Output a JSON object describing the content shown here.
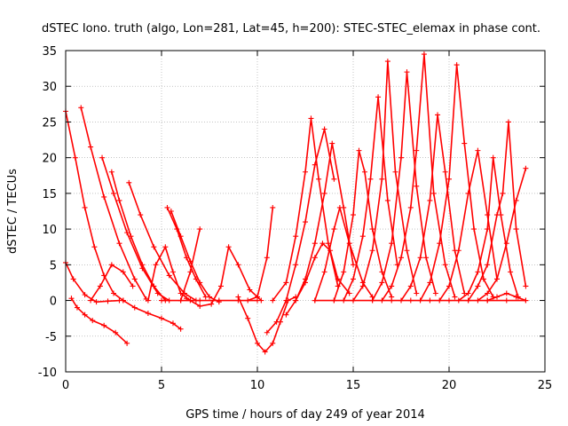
{
  "chart_data": {
    "type": "scatter",
    "title": "dSTEC Iono. truth (algo, Lon=281, Lat=45, h=200): STEC-STEC_elemax in phase cont.",
    "xlabel": "GPS time / hours of day 249 of year 2014",
    "ylabel": "dSTEC  / TECUs",
    "xlim": [
      0,
      25
    ],
    "ylim": [
      -10,
      35
    ],
    "xticks": [
      0,
      5,
      10,
      15,
      20,
      25
    ],
    "yticks": [
      -10,
      -5,
      0,
      5,
      10,
      15,
      20,
      25,
      30,
      35
    ],
    "grid": true,
    "marker": "+",
    "color": "#ff0000",
    "series": [
      {
        "x": [
          0.0,
          0.4,
          1.0,
          1.6,
          2.2,
          2.8
        ],
        "y": [
          5.3,
          3.0,
          0.8,
          -0.2,
          -0.1,
          0.0
        ]
      },
      {
        "x": [
          0.0,
          0.5,
          1.0,
          1.5,
          2.0,
          2.5,
          3.0
        ],
        "y": [
          26.5,
          20.0,
          13.0,
          7.5,
          3.5,
          1.0,
          0.0
        ]
      },
      {
        "x": [
          0.3,
          0.6,
          1.0,
          1.4,
          2.0,
          2.6,
          3.2
        ],
        "y": [
          0.3,
          -1.0,
          -2.0,
          -2.8,
          -3.5,
          -4.5,
          -6.0
        ]
      },
      {
        "x": [
          0.8,
          1.3,
          2.0,
          2.8,
          3.6,
          4.2
        ],
        "y": [
          27.0,
          21.5,
          14.5,
          8.0,
          3.0,
          0.2
        ]
      },
      {
        "x": [
          1.3,
          1.8,
          2.4,
          3.0,
          3.5
        ],
        "y": [
          0.0,
          2.0,
          5.0,
          4.0,
          2.0
        ]
      },
      {
        "x": [
          1.9,
          2.5,
          3.2,
          4.0,
          4.8,
          5.4
        ],
        "y": [
          20.0,
          15.0,
          9.5,
          4.5,
          1.0,
          0.0
        ]
      },
      {
        "x": [
          2.4,
          2.8,
          3.4,
          4.0,
          4.6,
          5.2
        ],
        "y": [
          18.0,
          14.0,
          9.0,
          5.0,
          2.0,
          0.0
        ]
      },
      {
        "x": [
          3.3,
          3.9,
          4.6,
          5.4,
          6.2,
          6.8
        ],
        "y": [
          16.5,
          12.0,
          7.5,
          3.5,
          1.0,
          0.0
        ]
      },
      {
        "x": [
          3.0,
          3.6,
          4.3,
          5.0,
          5.6,
          6.0
        ],
        "y": [
          0.0,
          -1.0,
          -1.8,
          -2.5,
          -3.2,
          -4.0
        ]
      },
      {
        "x": [
          4.3,
          4.7,
          5.2,
          5.6,
          6.0,
          6.5
        ],
        "y": [
          0.0,
          5.0,
          7.5,
          4.0,
          1.0,
          0.0
        ]
      },
      {
        "x": [
          5.3,
          5.8,
          6.3,
          6.8,
          7.3
        ],
        "y": [
          13.0,
          10.0,
          6.0,
          3.0,
          0.5
        ]
      },
      {
        "x": [
          5.5,
          6.0,
          6.5,
          7.0,
          7.5,
          8.0
        ],
        "y": [
          12.5,
          9.0,
          5.5,
          2.5,
          0.5,
          -0.2
        ]
      },
      {
        "x": [
          6.0,
          6.5,
          7.0
        ],
        "y": [
          0.0,
          4.0,
          10.0
        ]
      },
      {
        "x": [
          6.3,
          7.0,
          7.6,
          8.1,
          8.5,
          9.0,
          9.6,
          10.2
        ],
        "y": [
          0.3,
          -0.8,
          -0.5,
          2.0,
          7.5,
          5.0,
          1.5,
          0.0
        ]
      },
      {
        "x": [
          5.0,
          6.0,
          7.0,
          8.0,
          9.0,
          10.0
        ],
        "y": [
          0.0,
          0.0,
          0.0,
          0.0,
          0.0,
          0.0
        ]
      },
      {
        "x": [
          9.0,
          9.5,
          10.0,
          10.4,
          10.8,
          11.2,
          11.6,
          12.0
        ],
        "y": [
          0.5,
          -2.5,
          -6.0,
          -7.2,
          -6.0,
          -3.0,
          0.0,
          0.5
        ]
      },
      {
        "x": [
          9.5,
          10.0,
          10.5,
          10.8
        ],
        "y": [
          0.0,
          0.5,
          6.0,
          13.0
        ]
      },
      {
        "x": [
          10.8,
          11.5,
          12.0,
          12.5,
          12.8,
          13.2,
          13.7,
          14.2
        ],
        "y": [
          0.0,
          2.5,
          9.0,
          18.0,
          25.5,
          17.0,
          8.0,
          2.0
        ]
      },
      {
        "x": [
          10.5,
          11.0,
          11.5,
          12.0,
          12.5,
          13.0,
          13.5,
          14.0
        ],
        "y": [
          -4.5,
          -3.0,
          0.0,
          5.0,
          11.0,
          19.0,
          24.0,
          17.0
        ]
      },
      {
        "x": [
          12.0,
          12.5,
          13.0,
          13.5,
          13.9,
          14.5,
          15.0
        ],
        "y": [
          0.0,
          3.0,
          8.0,
          15.0,
          22.0,
          13.0,
          5.0
        ]
      },
      {
        "x": [
          11.5,
          12.0,
          12.5,
          13.0,
          13.4,
          13.8,
          14.2,
          14.8
        ],
        "y": [
          -2.0,
          0.0,
          2.5,
          6.0,
          8.0,
          7.0,
          3.0,
          1.0
        ]
      },
      {
        "x": [
          13.0,
          13.5,
          14.0,
          14.3,
          14.8,
          15.5,
          16.0
        ],
        "y": [
          0.0,
          4.0,
          10.0,
          13.0,
          8.0,
          2.5,
          0.5
        ]
      },
      {
        "x": [
          14.0,
          14.5,
          15.0,
          15.3,
          15.6,
          16.0,
          16.5,
          17.0
        ],
        "y": [
          0.0,
          4.0,
          12.0,
          21.0,
          18.0,
          10.0,
          4.0,
          0.5
        ]
      },
      {
        "x": [
          14.5,
          15.0,
          15.5,
          15.9,
          16.3,
          16.8,
          17.3
        ],
        "y": [
          0.0,
          3.0,
          9.0,
          17.0,
          28.5,
          14.0,
          5.0
        ]
      },
      {
        "x": [
          15.0,
          15.5,
          16.0,
          16.5,
          16.8,
          17.2,
          17.8,
          18.3
        ],
        "y": [
          0.0,
          2.0,
          7.0,
          17.0,
          33.5,
          18.0,
          7.0,
          1.0
        ]
      },
      {
        "x": [
          16.0,
          16.5,
          17.0,
          17.5,
          17.8,
          18.3,
          18.8,
          19.3
        ],
        "y": [
          0.0,
          2.5,
          8.0,
          20.0,
          32.0,
          16.0,
          6.0,
          1.0
        ]
      },
      {
        "x": [
          16.5,
          17.0,
          17.5,
          18.0,
          18.3,
          18.7,
          19.2,
          19.8,
          20.3
        ],
        "y": [
          0.0,
          2.0,
          6.0,
          13.0,
          21.0,
          34.5,
          15.0,
          5.0,
          0.5
        ]
      },
      {
        "x": [
          17.5,
          18.0,
          18.5,
          19.0,
          19.4,
          19.8,
          20.3,
          20.8
        ],
        "y": [
          0.0,
          2.0,
          6.0,
          14.0,
          26.0,
          18.0,
          7.0,
          1.0
        ]
      },
      {
        "x": [
          18.5,
          19.0,
          19.5,
          20.0,
          20.4,
          20.8,
          21.3,
          21.8,
          22.3
        ],
        "y": [
          0.0,
          2.5,
          8.0,
          17.0,
          33.0,
          22.0,
          10.0,
          3.0,
          0.5
        ]
      },
      {
        "x": [
          19.5,
          20.0,
          20.5,
          21.0,
          21.5,
          22.0,
          22.5
        ],
        "y": [
          0.0,
          2.0,
          7.0,
          15.0,
          21.0,
          12.0,
          3.0
        ]
      },
      {
        "x": [
          20.5,
          21.0,
          21.5,
          22.0,
          22.3,
          22.7,
          23.2,
          23.6
        ],
        "y": [
          0.0,
          1.0,
          4.0,
          10.0,
          20.0,
          12.0,
          4.0,
          0.5
        ]
      },
      {
        "x": [
          21.0,
          21.5,
          22.0,
          22.5,
          22.8,
          23.1,
          23.5,
          24.0
        ],
        "y": [
          0.0,
          2.0,
          5.0,
          12.0,
          15.0,
          25.0,
          10.0,
          2.0
        ]
      },
      {
        "x": [
          21.5,
          22.0,
          22.5,
          23.0,
          23.5,
          24.0
        ],
        "y": [
          0.0,
          1.0,
          3.0,
          8.0,
          14.0,
          18.5
        ]
      },
      {
        "x": [
          22.0,
          22.5,
          23.0,
          23.5,
          24.0
        ],
        "y": [
          0.0,
          0.5,
          1.0,
          0.5,
          0.0
        ]
      },
      {
        "x": [
          13.0,
          14.0,
          15.0,
          16.0,
          17.0,
          18.0,
          19.0,
          20.0,
          21.0,
          22.0,
          23.0,
          24.0
        ],
        "y": [
          0.0,
          0.0,
          0.0,
          0.0,
          0.0,
          0.0,
          0.0,
          0.0,
          0.0,
          0.0,
          0.0,
          0.0
        ]
      }
    ]
  }
}
